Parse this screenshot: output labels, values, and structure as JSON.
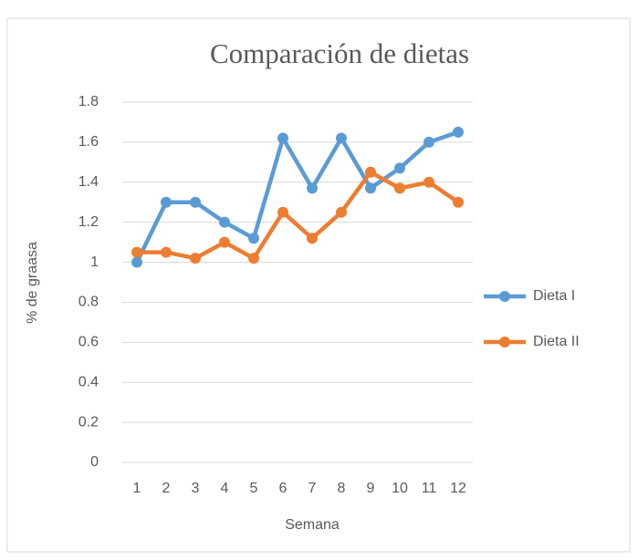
{
  "chart_data": {
    "type": "line",
    "title": "Comparación de dietas",
    "x_label": "Semana",
    "y_label": "% de graasa",
    "categories": [
      "1",
      "2",
      "3",
      "4",
      "5",
      "6",
      "7",
      "8",
      "9",
      "10",
      "11",
      "12"
    ],
    "series": [
      {
        "name": "Dieta I",
        "color": "#5b9bd5",
        "values": [
          1.0,
          1.3,
          1.3,
          1.2,
          1.12,
          1.62,
          1.37,
          1.62,
          1.37,
          1.47,
          1.6,
          1.65
        ]
      },
      {
        "name": "Dieta II",
        "color": "#ed7d31",
        "values": [
          1.05,
          1.05,
          1.02,
          1.1,
          1.02,
          1.25,
          1.12,
          1.25,
          1.45,
          1.37,
          1.4,
          1.3
        ]
      }
    ],
    "ylim": [
      0,
      1.8
    ],
    "yticks": [
      0,
      0.2,
      0.4,
      0.6,
      0.8,
      1,
      1.2,
      1.4,
      1.6,
      1.8
    ],
    "grid": true,
    "legend": "right"
  }
}
